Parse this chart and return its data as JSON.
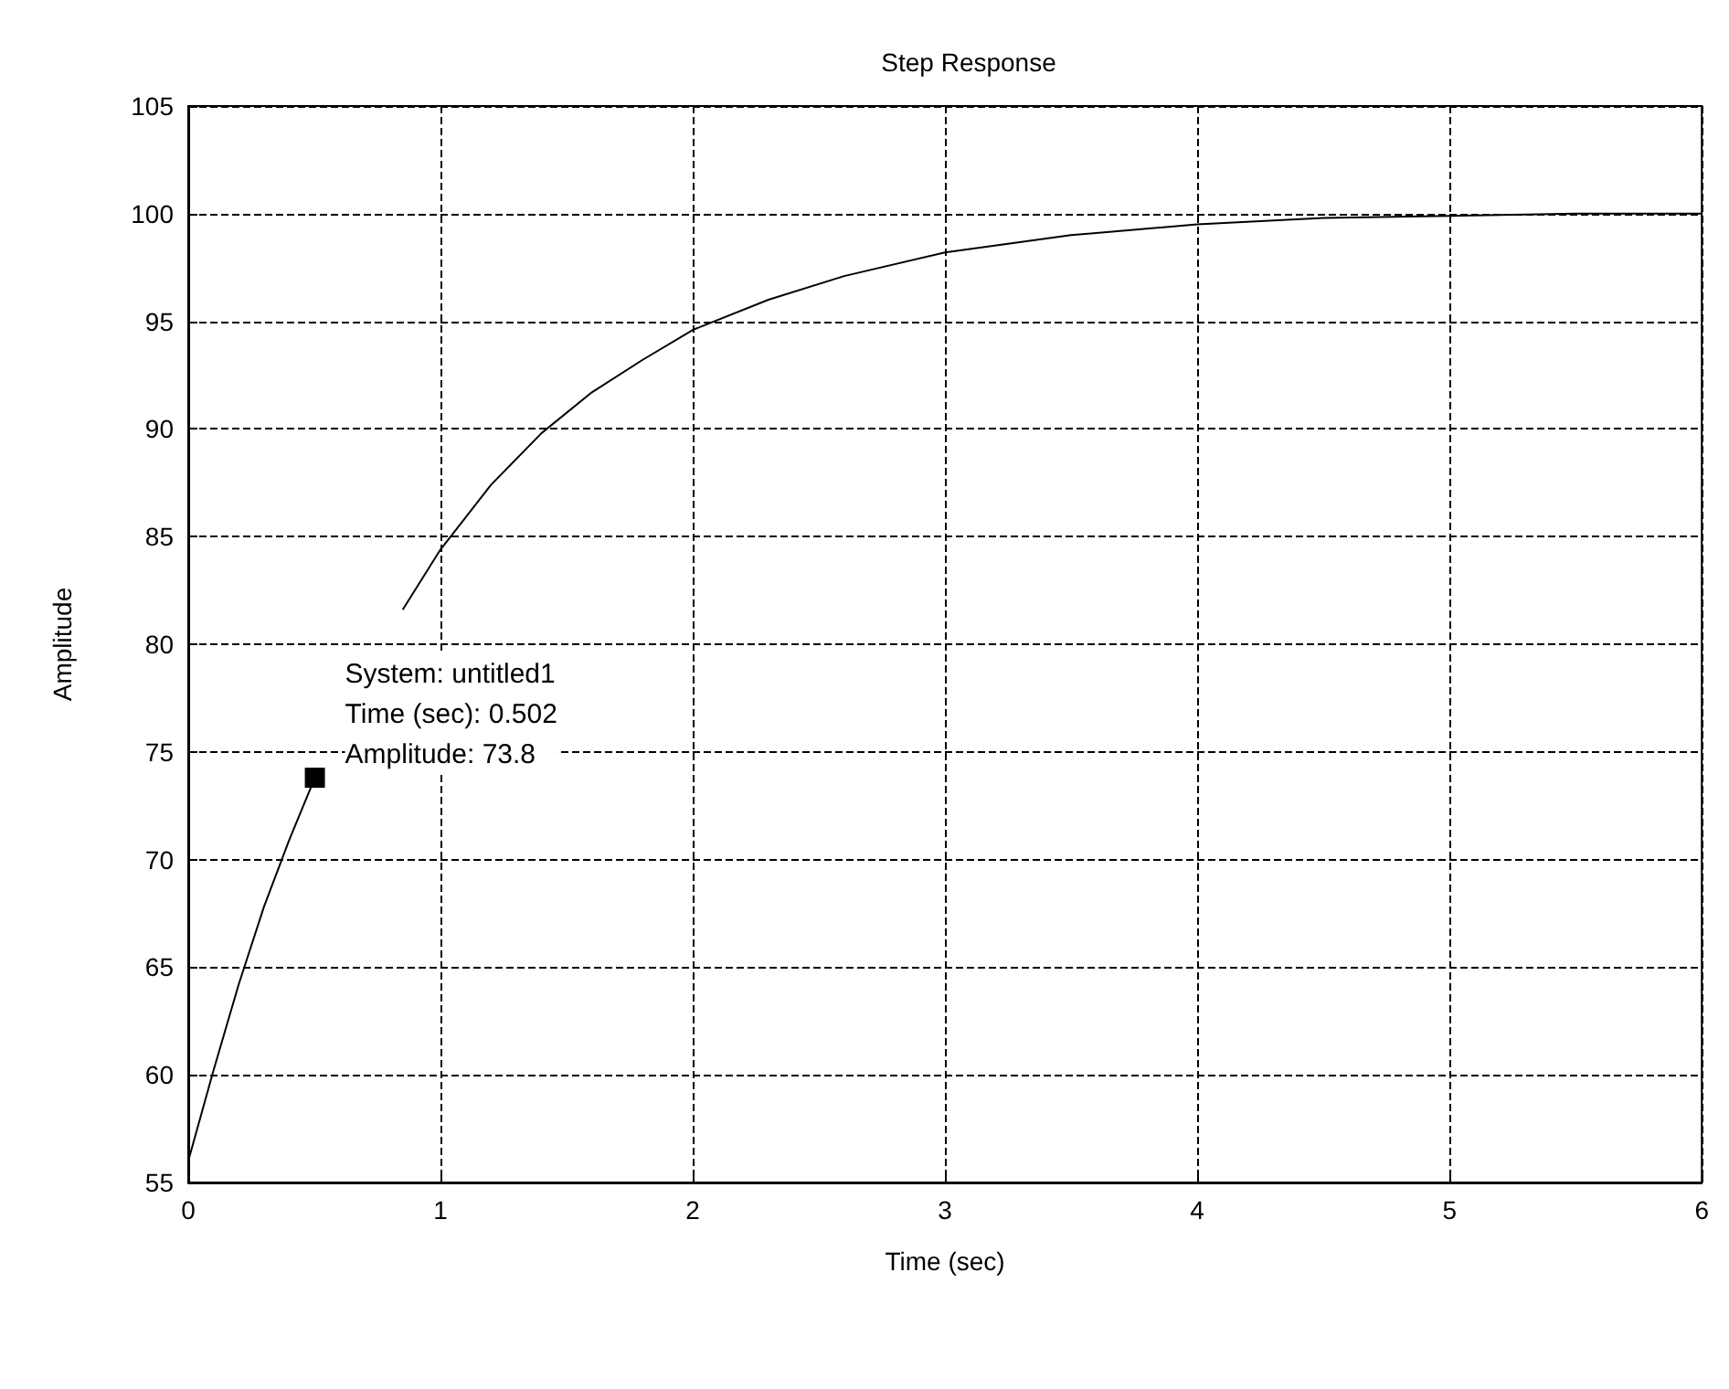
{
  "chart_data": {
    "type": "line",
    "title": "Step Response",
    "xlabel": "Time (sec)",
    "ylabel": "Amplitude",
    "x": [
      0,
      0.1,
      0.2,
      0.3,
      0.4,
      0.502,
      0.7,
      0.85,
      1,
      1.2,
      1.4,
      1.6,
      1.8,
      2,
      2.3,
      2.6,
      3,
      3.5,
      4,
      4.5,
      5,
      5.5,
      6
    ],
    "series": [
      {
        "color": "#000000",
        "values": [
          56,
          60.2,
          64.2,
          67.8,
          70.9,
          73.8,
          null,
          81.6,
          84.4,
          87.4,
          89.8,
          91.7,
          93.2,
          94.6,
          96.0,
          97.1,
          98.2,
          99.0,
          99.5,
          99.8,
          99.9,
          100,
          100
        ]
      }
    ],
    "xlim": [
      0,
      6
    ],
    "xticks": [
      0,
      1,
      2,
      3,
      4,
      5,
      6
    ],
    "ylim": [
      55,
      105
    ],
    "yticks": [
      55,
      60,
      65,
      70,
      75,
      80,
      85,
      90,
      95,
      100,
      105
    ],
    "grid": true,
    "marker": "none",
    "annotations": [
      {
        "text": "System: untitled1\nTime (sec): 0.502\nAmplitude: 73.8",
        "x": 0.502,
        "y": 73.8
      }
    ]
  }
}
